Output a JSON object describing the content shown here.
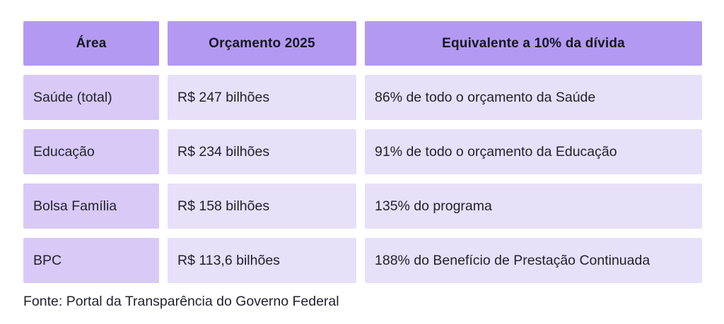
{
  "chart_data": {
    "type": "table",
    "title": "",
    "columns": [
      "Área",
      "Orçamento 2025",
      "Equivalente a 10% da dívida"
    ],
    "rows": [
      [
        "Saúde (total)",
        "R$ 247 bilhões",
        "86% de todo o orçamento da Saúde"
      ],
      [
        "Educação",
        "R$ 234 bilhões",
        "91% de todo o orçamento da Educação"
      ],
      [
        "Bolsa Família",
        "R$ 158 bilhões",
        "135% do programa"
      ],
      [
        "BPC",
        "R$ 113,6 bilhões",
        "188% do Benefício de Prestação Continuada"
      ]
    ],
    "source": "Fonte: Portal da Transparência do Governo Federal"
  },
  "table": {
    "headers": {
      "area": "Área",
      "budget": "Orçamento 2025",
      "equivalent": "Equivalente a 10% da dívida"
    },
    "rows": [
      {
        "area": "Saúde (total)",
        "budget": "R$ 247 bilhões",
        "equivalent": "86% de todo o orçamento da Saúde"
      },
      {
        "area": "Educação",
        "budget": "R$ 234 bilhões",
        "equivalent": "91% de todo o orçamento da Educação"
      },
      {
        "area": "Bolsa Família",
        "budget": "R$ 158 bilhões",
        "equivalent": "135% do programa"
      },
      {
        "area": "BPC",
        "budget": "R$ 113,6 bilhões",
        "equivalent": "188% do Benefício de Prestação Continuada"
      }
    ]
  },
  "footer": {
    "source": "Fonte: Portal da Transparência do Governo Federal"
  },
  "colors": {
    "header_bg": "#b399f2",
    "area_cell_bg": "#d9c9f6",
    "value_cell_bg": "#e7e0f9",
    "text": "#22222e",
    "background": "#ffffff"
  }
}
